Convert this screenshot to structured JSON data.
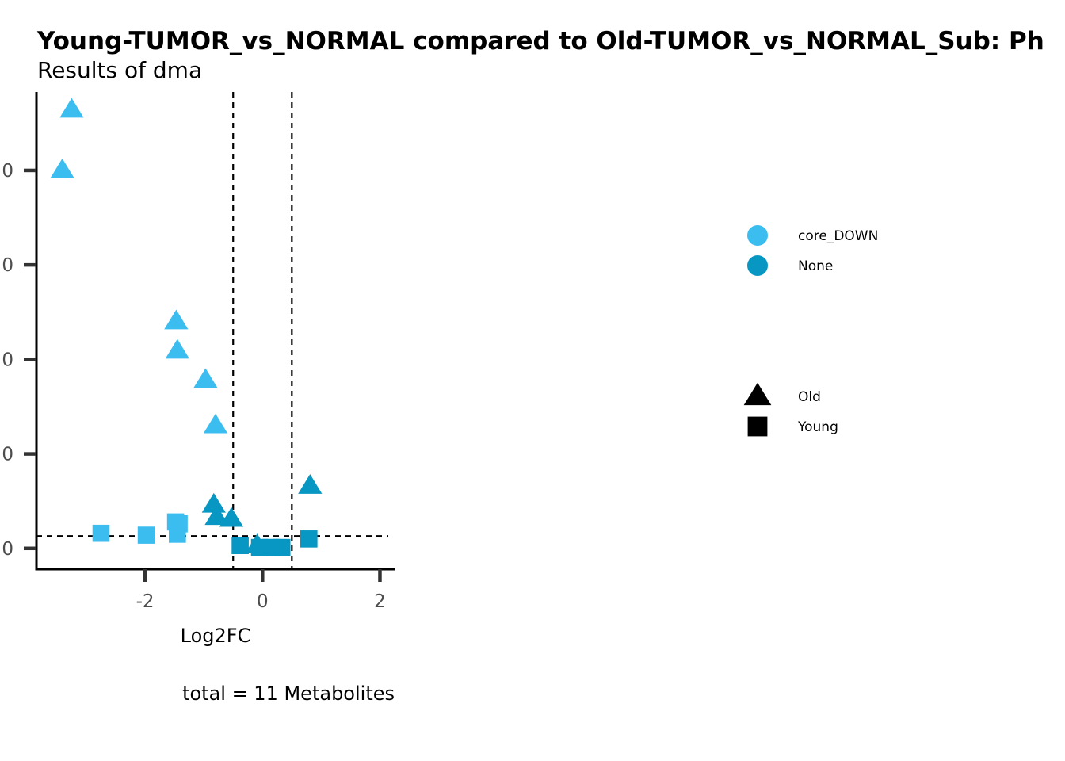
{
  "chart_data": {
    "type": "scatter",
    "title": "Young-TUMOR_vs_NORMAL compared to Old-TUMOR_vs_NORMAL_Sub: Ph",
    "subtitle": "Results of dma",
    "xlabel": "Log2FC",
    "ylabel": "",
    "caption": "total = 11 Metabolites",
    "xlim": [
      -3.85,
      2.25
    ],
    "ylim": [
      -0.22,
      4.83
    ],
    "x_ticks": [
      -2,
      0,
      2
    ],
    "x_tick_labels": [
      "-2",
      "0",
      "2"
    ],
    "y_ticks": [
      0,
      1,
      2,
      3,
      4
    ],
    "y_tick_labels": [
      "0",
      "0",
      "0",
      "0",
      "0"
    ],
    "vlines": [
      -0.5,
      0.5
    ],
    "hline": 0.13,
    "colors": {
      "core_DOWN": "#3bbdf0",
      "None": "#0897c2"
    },
    "legend_color_entries": [
      "core_DOWN",
      "None"
    ],
    "legend_shape_entries": [
      "Old",
      "Young"
    ],
    "legend_position": "right",
    "grid": false,
    "series": [
      {
        "name": "core_DOWN",
        "shape": "Old",
        "x": [
          -3.25,
          -3.41,
          -1.47,
          -1.45,
          -0.97,
          -0.8
        ],
        "y": [
          4.64,
          4.0,
          2.4,
          2.09,
          1.78,
          1.3
        ]
      },
      {
        "name": "None",
        "shape": "Old",
        "x": [
          0.81,
          -0.83,
          -0.78,
          -0.53,
          -0.09
        ],
        "y": [
          0.66,
          0.46,
          0.33,
          0.31,
          0.03
        ]
      },
      {
        "name": "core_DOWN",
        "shape": "Young",
        "x": [
          -2.75,
          -1.98,
          -1.48,
          -1.42,
          -1.45
        ],
        "y": [
          0.16,
          0.14,
          0.28,
          0.26,
          0.15
        ]
      },
      {
        "name": "None",
        "shape": "Young",
        "x": [
          0.79,
          -0.38,
          -0.05,
          0.15,
          0.33
        ],
        "y": [
          0.1,
          0.03,
          0.01,
          0.01,
          0.01
        ]
      }
    ]
  }
}
